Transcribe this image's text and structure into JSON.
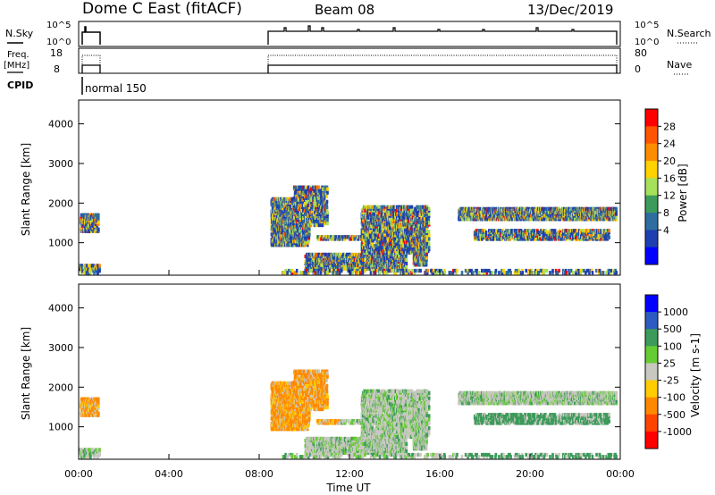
{
  "header": {
    "station": "Dome C East (fitACF)",
    "beam": "Beam 08",
    "date": "13/Dec/2019"
  },
  "panels": {
    "nsky": {
      "label": "N.Sky",
      "right_label": "N.Search",
      "ticks": [
        "10^5",
        "10^0"
      ],
      "right_ticks": [
        "10^5",
        "10^0"
      ]
    },
    "freq": {
      "label_line1": "Freq.",
      "label_line2": "[MHz]",
      "right_label": "Nave",
      "ticks": [
        "18",
        "8"
      ],
      "right_ticks": [
        "80",
        "0"
      ]
    },
    "cpid": {
      "label": "CPID",
      "program": "normal 150"
    }
  },
  "chart_data": [
    {
      "type": "heatmap",
      "ylabel": "Slant Range [km]",
      "xlabel": "Time UT",
      "xlim": [
        "00:00",
        "24:00"
      ],
      "ylim": [
        180,
        4600
      ],
      "yticks": [
        "4000",
        "3000",
        "2000",
        "1000"
      ],
      "xticks": [
        "00:00",
        "04:00",
        "08:00",
        "12:00",
        "16:00",
        "20:00",
        "00:00"
      ],
      "colorbar": {
        "label": "Power [dB]",
        "ticks": [
          "28",
          "24",
          "20",
          "16",
          "12",
          "8",
          "4"
        ],
        "colors": [
          "#ff0000",
          "#ff5500",
          "#ff8c00",
          "#ffd200",
          "#a7e05a",
          "#3c9b5a",
          "#2e6e9e",
          "#1e3fb0",
          "#0000ff"
        ]
      }
    },
    {
      "type": "heatmap",
      "ylabel": "Slant Range [km]",
      "xlabel": "Time UT",
      "xlim": [
        "00:00",
        "24:00"
      ],
      "ylim": [
        180,
        4600
      ],
      "yticks": [
        "4000",
        "3000",
        "2000",
        "1000"
      ],
      "xticks": [
        "00:00",
        "04:00",
        "08:00",
        "12:00",
        "16:00",
        "20:00",
        "00:00"
      ],
      "colorbar": {
        "label": "Velocity [m s-1]",
        "ticks": [
          "1000",
          "500",
          "100",
          "25",
          "-25",
          "-100",
          "-500",
          "-1000"
        ],
        "colors": [
          "#0000ff",
          "#2e5bbf",
          "#3c9b5a",
          "#66cc33",
          "#c8c8c0",
          "#ffcc00",
          "#ff8800",
          "#ff4400",
          "#ff0000"
        ]
      }
    }
  ],
  "footer": {
    "time_label": "Time UT"
  }
}
